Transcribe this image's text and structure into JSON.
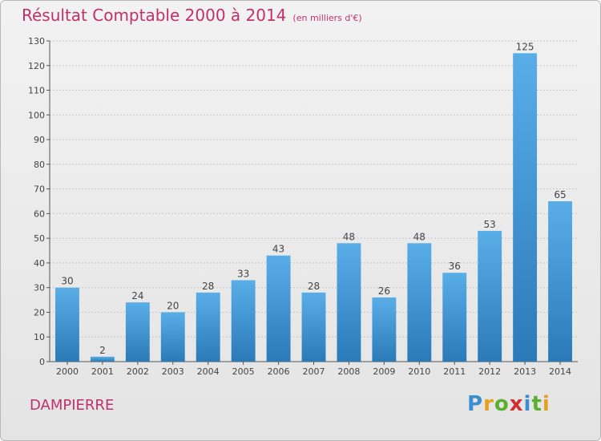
{
  "header": {
    "title": "Résultat Comptable 2000 à 2014",
    "subtitle": "(en milliers d'€)"
  },
  "place_name": "DAMPIERRE",
  "logo": {
    "text": "Proxiti",
    "letters": [
      "P",
      "r",
      "o",
      "x",
      "i",
      "t",
      "i"
    ],
    "colors": [
      "#3a8fd0",
      "#e8a020",
      "#5bb030",
      "#d03030",
      "#3a8fd0",
      "#5bb030",
      "#e8a020"
    ]
  },
  "chart_data": {
    "type": "bar",
    "categories": [
      "2000",
      "2001",
      "2002",
      "2003",
      "2004",
      "2005",
      "2006",
      "2007",
      "2008",
      "2009",
      "2010",
      "2011",
      "2012",
      "2013",
      "2014"
    ],
    "values": [
      30,
      2,
      24,
      20,
      28,
      33,
      43,
      28,
      48,
      26,
      48,
      36,
      53,
      125,
      65
    ],
    "data_labels": [
      "30",
      "2",
      "24",
      "20",
      "28",
      "33",
      "43",
      "28",
      "48",
      "26",
      "48",
      "36",
      "53",
      "125",
      "65"
    ],
    "ylim": [
      0,
      130
    ],
    "yticks": [
      0,
      10,
      20,
      30,
      40,
      50,
      60,
      70,
      80,
      90,
      100,
      110,
      120,
      130
    ],
    "grid": true,
    "bar_color_top": "#5aaee8",
    "bar_color_bottom": "#2a7ab8"
  }
}
